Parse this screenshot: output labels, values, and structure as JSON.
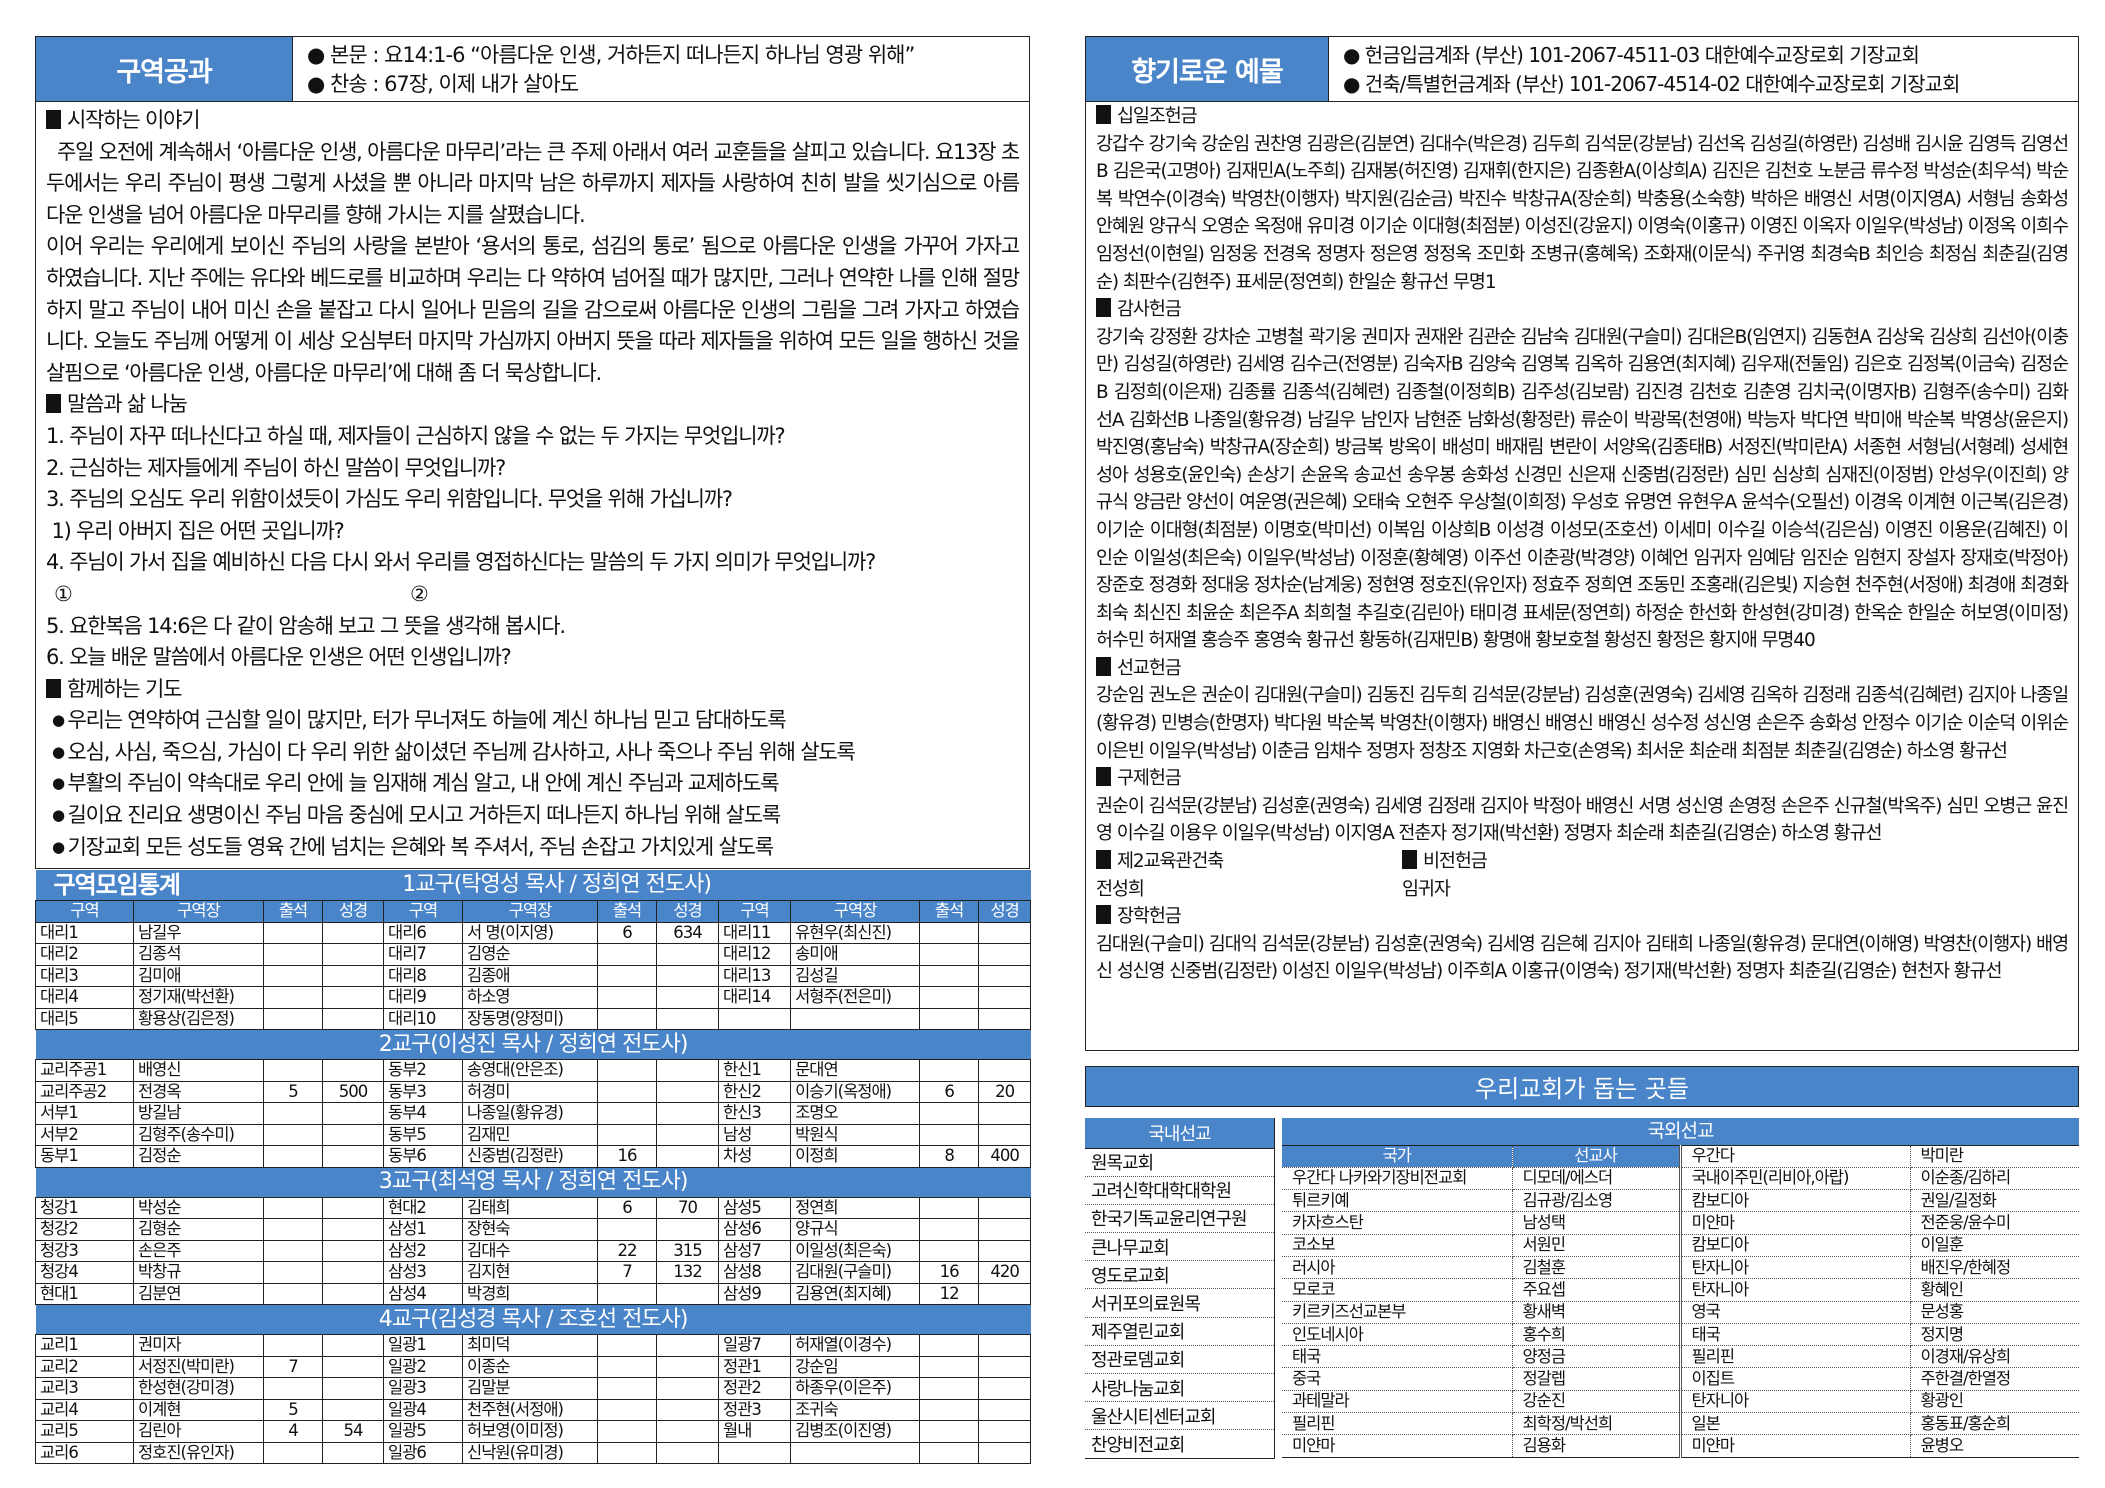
{
  "colors": {
    "accent": "#4a84c9",
    "border": "#222222"
  },
  "lesson": {
    "title": "구역공과",
    "text_line": "● 본문 : 요14:1-6 “아름다운 인생, 거하든지 떠나든지 하나님 영광 위해”",
    "hymn_line": "● 찬송 : 67장, 이제 내가 살아도",
    "intro_heading": "시작하는 이야기",
    "intro_p1": "  주일 오전에 계속해서 ‘아름다운 인생, 아름다운 마무리’라는 큰 주제 아래서 여러 교훈들을 살피고 있습니다. 요13장 초두에서는 우리 주님이 평생 그렇게 사셨을 뿐 아니라 마지막 남은 하루까지 제자들 사랑하여 친히 발을 씻기심으로 아름다운 인생을 넘어 아름다운 마무리를 향해 가시는 지를 살폈습니다.",
    "intro_p2": "이어 우리는 우리에게 보이신 주님의 사랑을 본받아 ‘용서의 통로, 섬김의 통로’ 됨으로 아름다운 인생을 가꾸어 가자고 하였습니다. 지난 주에는 유다와 베드로를 비교하며 우리는 다 약하여 넘어질 때가 많지만, 그러나 연약한 나를 인해 절망하지 말고 주님이 내어 미신 손을 붙잡고 다시 일어나 믿음의 길을 감으로써 아름다운 인생의 그림을 그려 가자고 하였습니다. 오늘도 주님께 어떻게 이 세상 오심부터 마지막 가심까지 아버지 뜻을 따라 제자들을 위하여 모든 일을 행하신 것을 살핌으로 ‘아름다운 인생, 아름다운 마무리’에 대해 좀 더 묵상합니다.",
    "share_heading": "말씀과 삶 나눔",
    "questions": [
      "1. 주님이 자꾸 떠나신다고 하실 때, 제자들이 근심하지 않을 수 없는 두 가지는 무엇입니까?",
      "2. 근심하는 제자들에게 주님이 하신 말씀이 무엇입니까?",
      "3. 주님의 오심도 우리 위함이셨듯이 가심도 우리 위함입니다. 무엇을 위해 가십니까?",
      " 1) 우리 아버지 집은 어떤 곳입니까?",
      "4. 주님이 가서 집을 예비하신 다음 다시 와서 우리를 영접하신다는 말씀의 두 가지 의미가 무엇입니까?"
    ],
    "answer_marks": [
      "①",
      "②"
    ],
    "questions2": [
      "5. 요한복음 14:6은 다 같이 암송해 보고 그 뜻을 생각해 봅시다.",
      "6. 오늘 배운 말씀에서 아름다운 인생은 어떤 인생입니까?"
    ],
    "prayer_heading": "함께하는 기도",
    "prayers": [
      "우리는 연약하여 근심할 일이 많지만, 터가 무너져도 하늘에 계신 하나님 믿고 담대하도록",
      "오심, 사심, 죽으심, 가심이 다 우리 위한 삶이셨던 주님께 감사하고, 사나 죽으나 주님 위해 살도록",
      "부활의 주님이 약속대로 우리 안에 늘 임재해 계심 알고, 내 안에 계신 주님과 교제하도록",
      "길이요 진리요 생명이신 주님 마음 중심에 모시고 거하든지 떠나든지 하나님 위해 살도록",
      "기장교회 모든 성도들 영육 간에 넘치는 은혜와 복 주셔서, 주님 손잡고 가치있게 살도록"
    ]
  },
  "stats": {
    "title": "구역모임통계",
    "columns": [
      "구역",
      "구역장",
      "출석",
      "성경",
      "구역",
      "구역장",
      "출석",
      "성경",
      "구역",
      "구역장",
      "출석",
      "성경"
    ],
    "sections": [
      {
        "title": "1교구(탁영성 목사 / 정희연 전도사)",
        "rows": [
          [
            "대리1",
            "남길우",
            "",
            "",
            "대리6",
            "서 명(이지영)",
            "6",
            "634",
            "대리11",
            "유현우(최신진)",
            "",
            ""
          ],
          [
            "대리2",
            "김종석",
            "",
            "",
            "대리7",
            "김영순",
            "",
            "",
            "대리12",
            "송미애",
            "",
            ""
          ],
          [
            "대리3",
            "김미애",
            "",
            "",
            "대리8",
            "김종애",
            "",
            "",
            "대리13",
            "김성길",
            "",
            ""
          ],
          [
            "대리4",
            "정기재(박선환)",
            "",
            "",
            "대리9",
            "하소영",
            "",
            "",
            "대리14",
            "서형주(전은미)",
            "",
            ""
          ],
          [
            "대리5",
            "황용상(김은정)",
            "",
            "",
            "대리10",
            "장동명(양정미)",
            "",
            "",
            "",
            "",
            "",
            ""
          ]
        ]
      },
      {
        "title": "2교구(이성진 목사 / 정희연 전도사)",
        "rows": [
          [
            "교리주공1",
            "배영신",
            "",
            "",
            "동부2",
            "송영대(안은조)",
            "",
            "",
            "한신1",
            "문대연",
            "",
            ""
          ],
          [
            "교리주공2",
            "전경옥",
            "5",
            "500",
            "동부3",
            "허경미",
            "",
            "",
            "한신2",
            "이승기(옥정애)",
            "6",
            "20"
          ],
          [
            "서부1",
            "방길남",
            "",
            "",
            "동부4",
            "나종일(황유경)",
            "",
            "",
            "한신3",
            "조명오",
            "",
            ""
          ],
          [
            "서부2",
            "김형주(송수미)",
            "",
            "",
            "동부5",
            "김재민",
            "",
            "",
            "남성",
            "박원식",
            "",
            ""
          ],
          [
            "동부1",
            "김정순",
            "",
            "",
            "동부6",
            "신중범(김정란)",
            "16",
            "",
            "차성",
            "이정희",
            "8",
            "400"
          ]
        ]
      },
      {
        "title": "3교구(최석영 목사 / 정희연 전도사)",
        "rows": [
          [
            "청강1",
            "박성순",
            "",
            "",
            "현대2",
            "김태희",
            "6",
            "70",
            "삼성5",
            "정연희",
            "",
            ""
          ],
          [
            "청강2",
            "김형순",
            "",
            "",
            "삼성1",
            "장현숙",
            "",
            "",
            "삼성6",
            "양규식",
            "",
            ""
          ],
          [
            "청강3",
            "손은주",
            "",
            "",
            "삼성2",
            "김대수",
            "22",
            "315",
            "삼성7",
            "이일성(최은숙)",
            "",
            ""
          ],
          [
            "청강4",
            "박창규",
            "",
            "",
            "삼성3",
            "김지현",
            "7",
            "132",
            "삼성8",
            "김대원(구슬미)",
            "16",
            "420"
          ],
          [
            "현대1",
            "김분연",
            "",
            "",
            "삼성4",
            "박경희",
            "",
            "",
            "삼성9",
            "김용연(최지혜)",
            "12",
            ""
          ]
        ]
      },
      {
        "title": "4교구(김성경 목사 / 조호선 전도사)",
        "rows": [
          [
            "교리1",
            "권미자",
            "",
            "",
            "일광1",
            "최미덕",
            "",
            "",
            "일광7",
            "허재열(이경수)",
            "",
            ""
          ],
          [
            "교리2",
            "서정진(박미란)",
            "7",
            "",
            "일광2",
            "이종순",
            "",
            "",
            "정관1",
            "강순임",
            "",
            ""
          ],
          [
            "교리3",
            "한성현(강미경)",
            "",
            "",
            "일광3",
            "김말분",
            "",
            "",
            "정관2",
            "하종우(이은주)",
            "",
            ""
          ],
          [
            "교리4",
            "이계현",
            "5",
            "",
            "일광4",
            "천주현(서정애)",
            "",
            "",
            "정관3",
            "조귀숙",
            "",
            ""
          ],
          [
            "교리5",
            "김린아",
            "4",
            "54",
            "일광5",
            "허보영(이미정)",
            "",
            "",
            "월내",
            "김병조(이진영)",
            "",
            ""
          ],
          [
            "교리6",
            "정호진(유인자)",
            "",
            "",
            "일광6",
            "신낙원(유미경)",
            "",
            "",
            "",
            "",
            "",
            ""
          ]
        ]
      }
    ]
  },
  "offering": {
    "title": "향기로운 예물",
    "account1": "● 헌금입금계좌 (부산) 101-2067-4511-03 대한예수교장로회 기장교회",
    "account2": "● 건축/특별헌금계좌 (부산) 101-2067-4514-02 대한예수교장로회 기장교회",
    "tithe": {
      "heading": "십일조헌금",
      "names": "강갑수 강기숙 강순임 권찬영 김광은(김분연) 김대수(박은경) 김두희 김석문(강분남) 김선옥 김성길(하영란) 김성배 김시윤 김영득 김영선B 김은국(고명아) 김재민A(노주희) 김재봉(허진영) 김재휘(한지은) 김종환A(이상희A) 김진은 김천호 노분금 류수정 박성순(최우석) 박순복 박연수(이경숙) 박영찬(이행자) 박지원(김순금) 박진수 박창규A(장순희) 박충용(소숙향) 박하은 배영신 서명(이지영A) 서형님 송화성 안혜원 양규식 오영순 옥정애 유미경 이기순 이대형(최점분) 이성진(강윤지) 이영숙(이홍규) 이영진 이옥자 이일우(박성남) 이정옥 이희수 임정선(이현일) 임정웅 전경옥 정명자 정은영 정정옥 조민화 조병규(홍혜옥) 조화재(이문식) 주귀영 최경숙B 최인승 최정심 최춘길(김영순) 최판수(김현주) 표세문(정연희) 한일순 황규선 무명1"
    },
    "thanks": {
      "heading": "감사헌금",
      "names": "강기숙 강정환 강차순 고병철 곽기웅 권미자 권재완 김관순 김남숙 김대원(구슬미) 김대은B(임연지) 김동현A 김상욱 김상희 김선아(이충만) 김성길(하영란) 김세영 김수근(전영분) 김숙자B 김양숙 김영복 김옥하 김용연(최지혜) 김우재(전둘임) 김은호 김정복(이금숙) 김정순B 김정희(이은재) 김종률 김종석(김혜련) 김종철(이정희B) 김주성(김보람) 김진경 김천호 김춘영 김치국(이명자B) 김형주(송수미) 김화선A 김화선B 나종일(황유경) 남길우 남인자 남현준 남화성(황정란) 류순이 박광목(천영애) 박능자 박다연 박미애 박순복 박영상(윤은지) 박진영(홍남숙) 박창규A(장순희) 방금복 방옥이 배성미 배재림 변란이 서양옥(김종태B) 서정진(박미란A) 서종현 서형님(서형례) 성세현 성아 성용호(윤인숙) 손상기 손윤옥 송교선 송우봉 송화성 신경민 신은재 신중범(김정란) 심민 심상희 심재진(이정범) 안성우(이진희) 양규식 양금란 양선이 여운영(권은혜) 오태숙 오현주 우상철(이희정) 우성호 유명연 유현우A 윤석수(오필선) 이경옥 이계현 이근복(김은경) 이기순 이대형(최점분) 이명호(박미선) 이복임 이상희B 이성경 이성모(조호선) 이세미 이수길 이승석(김은심) 이영진 이용운(김혜진) 이인순 이일성(최은숙) 이일우(박성남) 이정훈(황혜영) 이주선 이춘광(박경양) 이혜언 임귀자 임예담 임진순 임현지 장설자 장재호(박정아) 장준호 정경화 정대웅 정차순(남계웅) 정현영 정호진(유인자) 정효주 정희연 조동민 조홍래(김은빛) 지승현 천주현(서정애) 최경애 최경화 최숙 최신진 최윤순 최은주A 최희철 추길호(김린아) 태미경 표세문(정연희) 하정순 한선화 한성현(강미경) 한옥순 한일순 허보영(이미정) 허수민 허재열 홍승주 홍영숙 황규선 황동하(김재민B) 황명애 황보호철 황성진 황정은 황지애 무명40"
    },
    "mission": {
      "heading": "선교헌금",
      "names": "강순임 권노은 권순이 김대원(구슬미) 김동진 김두희 김석문(강분남) 김성훈(권영숙) 김세영 김옥하 김정래 김종석(김혜련) 김지아 나종일(황유경) 민병승(한명자) 박다원 박순복 박영찬(이행자) 배영신 배영신 배영신 성수정 성신영 손은주 송화성 안정수 이기순 이순덕 이위순 이은빈 이일우(박성남) 이춘금 임채수 정명자 정창조 지영화 차근호(손영옥) 최서운 최순래 최점분 최춘길(김영순) 하소영 황규선"
    },
    "relief": {
      "heading": "구제헌금",
      "names": "권순이 김석문(강분남) 김성훈(권영숙) 김세영 김정래 김지아 박정아 배영신 서명 성신영 손영정 손은주 신규철(박옥주) 심민 오병근 윤진영 이수길 이용우 이일우(박성남) 이지영A 전춘자 정기재(박선환) 정명자 최순래 최춘길(김영순) 하소영 황규선"
    },
    "building": {
      "heading": "제2교육관건축",
      "names": "전성희"
    },
    "vision": {
      "heading": "비전헌금",
      "names": "임귀자"
    },
    "scholarship": {
      "heading": "장학헌금",
      "names": "김대원(구슬미) 김대익 김석문(강분남) 김성훈(권영숙) 김세영 김은혜 김지아 김태희 나종일(황유경) 문대연(이해영) 박영찬(이행자) 배영신 성신영 신중범(김정란) 이성진 이일우(박성남) 이주희A 이홍규(이영숙) 정기재(박선환) 정명자 최춘길(김영순) 현천자 황규선"
    }
  },
  "support": {
    "title": "우리교회가 돕는 곳들",
    "domestic": {
      "heading": "국내선교",
      "items": [
        "원목교회",
        "고려신학대학대학원",
        "한국기독교윤리연구원",
        "큰나무교회",
        "영도로교회",
        "서귀포의료원목",
        "제주열린교회",
        "정관로뎀교회",
        "사랑나눔교회",
        "울산시티센터교회",
        "찬양비전교회"
      ]
    },
    "overseas": {
      "heading": "국외선교",
      "col_country": "국가",
      "col_missionary": "선교사",
      "left": [
        [
          "우간다 나카와기장비전교회",
          "디모데/에스더"
        ],
        [
          "튀르키예",
          "김규광/김소영"
        ],
        [
          "카자흐스탄",
          "남성택"
        ],
        [
          "코소보",
          "서원민"
        ],
        [
          "러시아",
          "김철훈"
        ],
        [
          "모로코",
          "주요셉"
        ],
        [
          "키르키즈선교본부",
          "황새벽"
        ],
        [
          "인도네시아",
          "홍수희"
        ],
        [
          "태국",
          "양정금"
        ],
        [
          "중국",
          "정갈렙"
        ],
        [
          "과테말라",
          "강순진"
        ],
        [
          "필리핀",
          "최학정/박선희"
        ],
        [
          "미얀마",
          "김용화"
        ]
      ],
      "right": [
        [
          "우간다",
          "박미란"
        ],
        [
          "국내이주민(리비아,아랍)",
          "이순종/김하리"
        ],
        [
          "캄보디아",
          "권일/길정화"
        ],
        [
          "미얀마",
          "전준웅/윤수미"
        ],
        [
          "캄보디아",
          "이일훈"
        ],
        [
          "탄자니아",
          "배진우/한혜정"
        ],
        [
          "탄자니아",
          "황혜인"
        ],
        [
          "영국",
          "문성홍"
        ],
        [
          "태국",
          "정지명"
        ],
        [
          "필리핀",
          "이경재/유상희"
        ],
        [
          "이집트",
          "주한결/한열정"
        ],
        [
          "탄자니아",
          "황광인"
        ],
        [
          "일본",
          "홍동표/홍순희"
        ],
        [
          "미얀마",
          "윤병오"
        ]
      ]
    }
  }
}
